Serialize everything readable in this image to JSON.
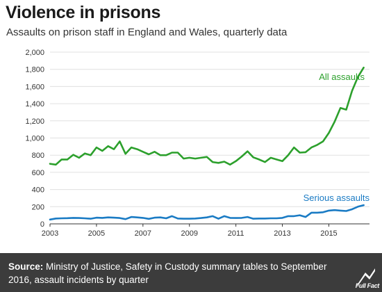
{
  "header": {
    "title": "Violence in prisons",
    "subtitle": "Assaults on prison staff in England and Wales, quarterly data"
  },
  "footer": {
    "source_label": "Source:",
    "source_text": "Ministry of Justice, Safety in Custody summary tables to September 2016, assault incidents by quarter",
    "logo_text": "Full Fact"
  },
  "colors": {
    "all_assaults": "#2ca02c",
    "serious_assaults": "#1a7bc4",
    "grid": "#e0e0e0",
    "footer_bg": "#3c3c3c"
  },
  "chart_data": {
    "type": "line",
    "title": "Violence in prisons",
    "subtitle": "Assaults on prison staff in England and Wales, quarterly data",
    "xlabel": "",
    "ylabel": "",
    "xlim": [
      2003.0,
      2016.75
    ],
    "ylim": [
      0,
      2000
    ],
    "x_ticks": [
      2003,
      2005,
      2007,
      2009,
      2011,
      2013,
      2015
    ],
    "y_ticks": [
      0,
      200,
      400,
      600,
      800,
      1000,
      1200,
      1400,
      1600,
      1800,
      2000
    ],
    "y_tick_labels": [
      "0",
      "200",
      "400",
      "600",
      "800",
      "1,000",
      "1,200",
      "1,400",
      "1,600",
      "1,800",
      "2,000"
    ],
    "grid": "horizontal",
    "x": [
      2003.0,
      2003.25,
      2003.5,
      2003.75,
      2004.0,
      2004.25,
      2004.5,
      2004.75,
      2005.0,
      2005.25,
      2005.5,
      2005.75,
      2006.0,
      2006.25,
      2006.5,
      2006.75,
      2007.0,
      2007.25,
      2007.5,
      2007.75,
      2008.0,
      2008.25,
      2008.5,
      2008.75,
      2009.0,
      2009.25,
      2009.5,
      2009.75,
      2010.0,
      2010.25,
      2010.5,
      2010.75,
      2011.0,
      2011.25,
      2011.5,
      2011.75,
      2012.0,
      2012.25,
      2012.5,
      2012.75,
      2013.0,
      2013.25,
      2013.5,
      2013.75,
      2014.0,
      2014.25,
      2014.5,
      2014.75,
      2015.0,
      2015.25,
      2015.5,
      2015.75,
      2016.0,
      2016.25,
      2016.5
    ],
    "series": [
      {
        "name": "All assaults",
        "color": "#2ca02c",
        "values": [
          700,
          690,
          750,
          750,
          805,
          770,
          820,
          800,
          890,
          850,
          905,
          870,
          960,
          815,
          890,
          870,
          840,
          810,
          840,
          800,
          800,
          830,
          830,
          760,
          770,
          760,
          770,
          780,
          720,
          710,
          725,
          690,
          730,
          785,
          845,
          775,
          750,
          720,
          770,
          750,
          730,
          800,
          890,
          830,
          835,
          890,
          920,
          960,
          1060,
          1190,
          1350,
          1330,
          1550,
          1710,
          1820
        ]
      },
      {
        "name": "Serious assaults",
        "color": "#1a7bc4",
        "values": [
          50,
          62,
          65,
          66,
          70,
          68,
          65,
          60,
          72,
          70,
          75,
          72,
          68,
          55,
          80,
          75,
          70,
          58,
          72,
          75,
          65,
          90,
          62,
          60,
          60,
          62,
          68,
          75,
          90,
          60,
          90,
          70,
          68,
          70,
          80,
          60,
          62,
          62,
          65,
          65,
          70,
          90,
          90,
          100,
          80,
          130,
          130,
          135,
          155,
          160,
          155,
          150,
          170,
          200,
          218
        ]
      }
    ]
  }
}
